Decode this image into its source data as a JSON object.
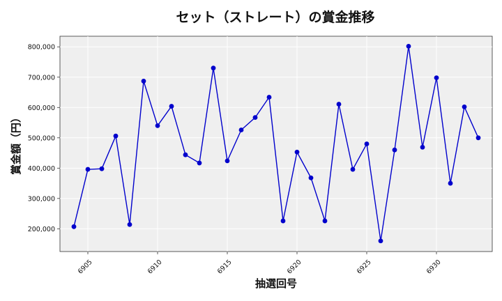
{
  "chart_data": {
    "type": "line",
    "title": "セット（ストレート）の賞金推移",
    "xlabel": "抽選回号",
    "ylabel": "賞金額（円）",
    "xlim": [
      6903,
      6934
    ],
    "ylim": [
      125000,
      835000
    ],
    "x_ticks": [
      6905,
      6910,
      6915,
      6920,
      6925,
      6930
    ],
    "x_tick_labels": [
      "6905",
      "6910",
      "6915",
      "6920",
      "6925",
      "6930"
    ],
    "y_ticks": [
      200000,
      300000,
      400000,
      500000,
      600000,
      700000,
      800000
    ],
    "y_tick_labels": [
      "200,000",
      "300,000",
      "400,000",
      "500,000",
      "600,000",
      "700,000",
      "800,000"
    ],
    "grid": true,
    "legend": "none",
    "colors": {
      "line": "#0000cc",
      "marker": "#0000cc",
      "plot_bg": "#efefef",
      "grid": "#ffffff"
    },
    "series": [
      {
        "x": [
          6904,
          6905,
          6906,
          6907,
          6908,
          6909,
          6910,
          6911,
          6912,
          6913,
          6914,
          6915,
          6916,
          6917,
          6918,
          6919,
          6920,
          6921,
          6922,
          6923,
          6924,
          6925,
          6926,
          6927,
          6928,
          6929,
          6930,
          6931,
          6932,
          6933
        ],
        "values": [
          207000,
          396000,
          398000,
          506000,
          214000,
          687000,
          540000,
          604000,
          444000,
          417000,
          730000,
          424000,
          526000,
          567000,
          634000,
          226000,
          453000,
          368000,
          226000,
          611000,
          396000,
          480000,
          160000,
          460000,
          802000,
          469000,
          698000,
          350000,
          602000,
          500000
        ]
      }
    ]
  }
}
